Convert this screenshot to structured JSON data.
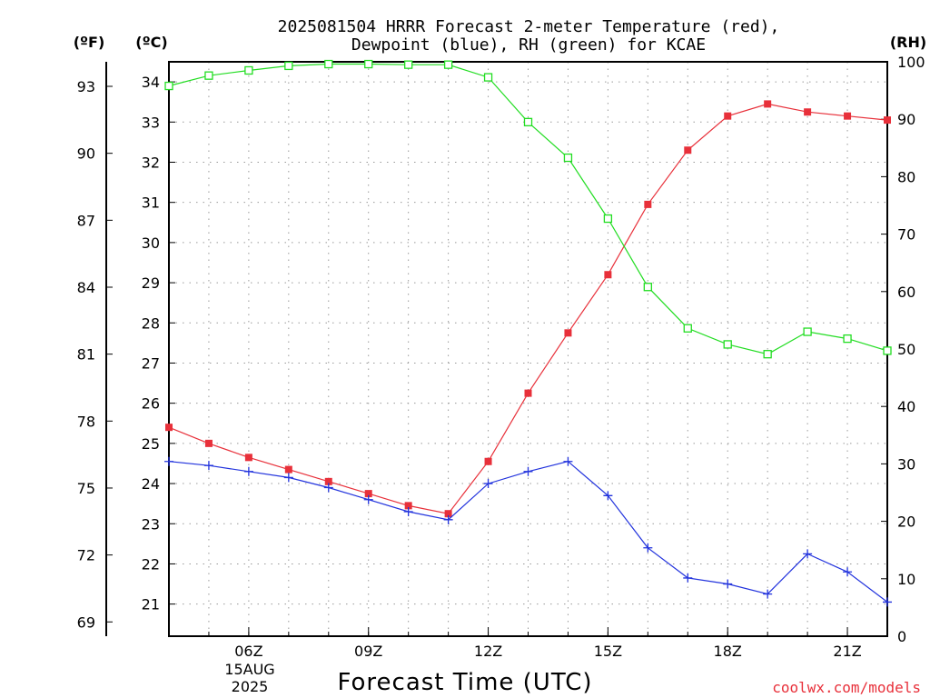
{
  "chart_data": {
    "type": "line",
    "title_line1": "2025081504 HRRR Forecast 2-meter Temperature (red),",
    "title_line2": "Dewpoint (blue), RH (green) for KCAE",
    "xlabel": "Forecast Time (UTC)",
    "date_label_line1": "15AUG",
    "date_label_line2": "2025",
    "credit": "coolwx.com/models",
    "axis_units": {
      "left_outer": "(ºF)",
      "left_inner": "(ºC)",
      "right": "(RH)"
    },
    "x_hours": [
      4,
      5,
      6,
      7,
      8,
      9,
      10,
      11,
      12,
      13,
      14,
      15,
      16,
      17,
      18,
      19,
      20,
      21,
      22
    ],
    "x_range_hours": [
      4,
      22
    ],
    "x_ticks": [
      {
        "hour": 6,
        "label": "06Z"
      },
      {
        "hour": 9,
        "label": "09Z"
      },
      {
        "hour": 12,
        "label": "12Z"
      },
      {
        "hour": 15,
        "label": "15Z"
      },
      {
        "hour": 18,
        "label": "18Z"
      },
      {
        "hour": 21,
        "label": "21Z"
      }
    ],
    "celsius_range": [
      20.2,
      34.5
    ],
    "celsius_ticks": [
      "21",
      "22",
      "23",
      "24",
      "25",
      "26",
      "27",
      "28",
      "29",
      "30",
      "31",
      "32",
      "33",
      "34"
    ],
    "fahrenheit_ticks": [
      "69",
      "72",
      "75",
      "78",
      "81",
      "84",
      "87",
      "90",
      "93"
    ],
    "rh_range": [
      0,
      100
    ],
    "rh_ticks": [
      "0",
      "10",
      "20",
      "30",
      "40",
      "50",
      "60",
      "70",
      "80",
      "90",
      "100"
    ],
    "grid": true,
    "colors": {
      "temperature": "#e8303a",
      "dewpoint": "#2233dd",
      "rh": "#22dd22"
    },
    "series": [
      {
        "key": "temperature",
        "axis": "celsius",
        "marker": "filled-square",
        "values": [
          25.4,
          25.0,
          24.65,
          24.35,
          24.05,
          23.75,
          23.45,
          23.25,
          24.55,
          26.25,
          27.75,
          29.2,
          30.95,
          32.3,
          33.15,
          33.45,
          33.25,
          33.15,
          33.05
        ]
      },
      {
        "key": "dewpoint",
        "axis": "celsius",
        "marker": "plus",
        "values": [
          24.55,
          24.45,
          24.3,
          24.15,
          23.9,
          23.6,
          23.3,
          23.1,
          24.0,
          24.3,
          24.55,
          23.7,
          22.4,
          21.65,
          21.5,
          21.25,
          22.25,
          21.8,
          21.05
        ]
      },
      {
        "key": "rh",
        "axis": "rh",
        "marker": "open-square",
        "values": [
          95.8,
          97.6,
          98.5,
          99.3,
          99.6,
          99.6,
          99.5,
          99.5,
          97.3,
          89.5,
          83.3,
          72.7,
          60.8,
          53.6,
          50.8,
          49.1,
          53.0,
          51.8,
          49.7
        ]
      }
    ]
  }
}
